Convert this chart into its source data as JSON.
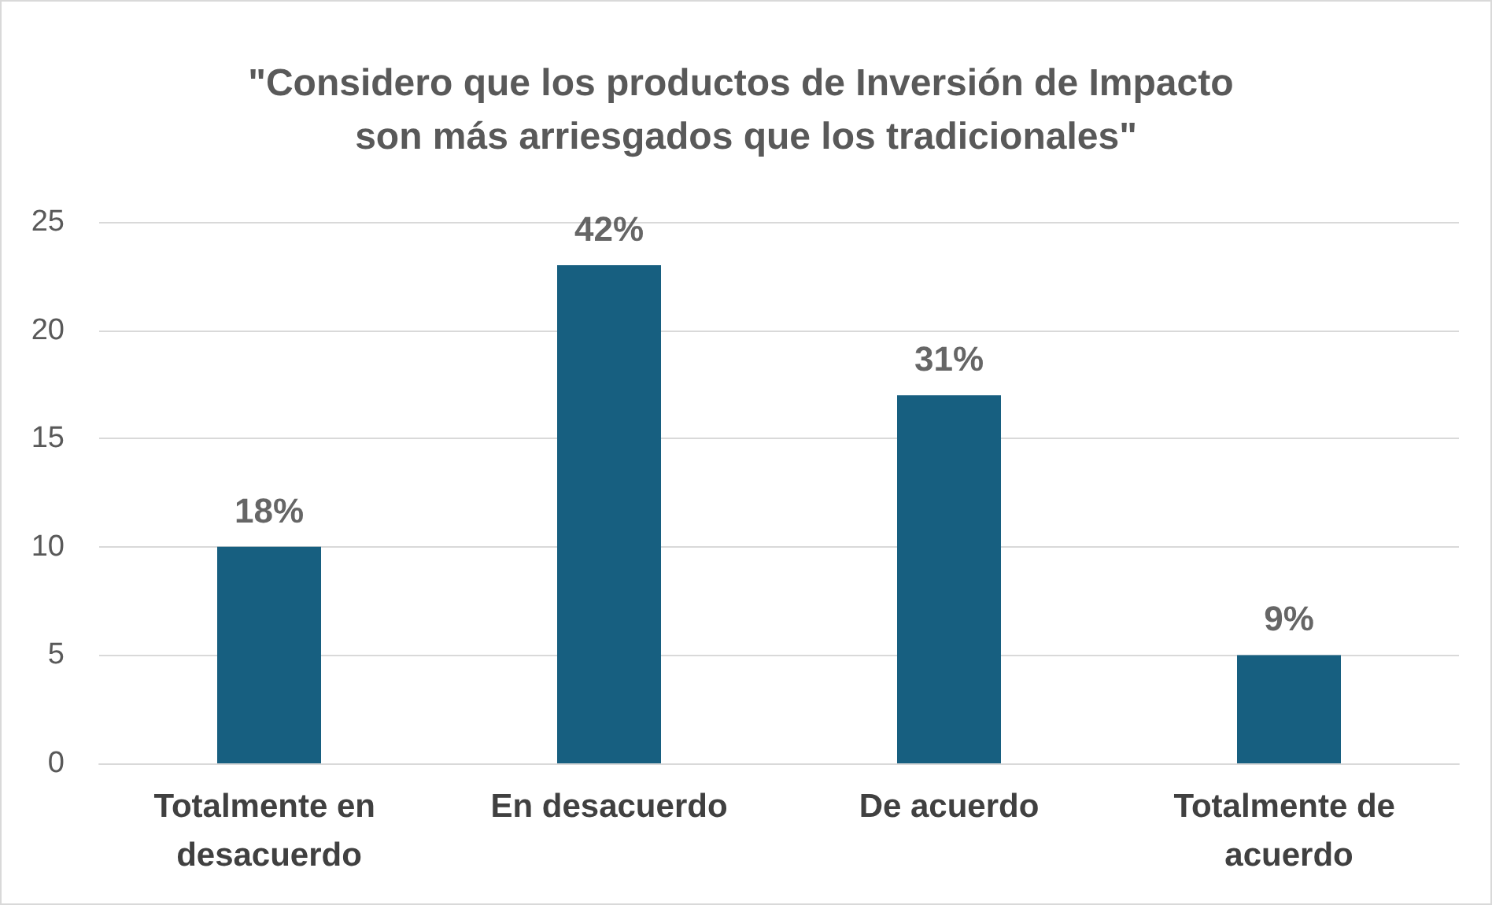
{
  "chart_data": {
    "type": "bar",
    "title": "\"Considero que los productos de Inversión de Impacto son más arriesgados que los tradicionales\"",
    "categories": [
      "Totalmente en desacuerdo",
      "En desacuerdo",
      "De acuerdo",
      "Totalmente de acuerdo"
    ],
    "values": [
      10,
      23,
      17,
      5
    ],
    "annotations": [
      {
        "text": "18%",
        "x": "Totalmente en desacuerdo",
        "y": 10
      },
      {
        "text": "42%",
        "x": "En desacuerdo",
        "y": 23
      },
      {
        "text": "31%",
        "x": "De acuerdo",
        "y": 17
      },
      {
        "text": "9%",
        "x": "Totalmente de acuerdo",
        "y": 5
      }
    ],
    "color": "#175f80",
    "ylim": [
      0,
      25
    ],
    "yticks": [
      0,
      5,
      10,
      15,
      20,
      25
    ],
    "grid": "y"
  }
}
